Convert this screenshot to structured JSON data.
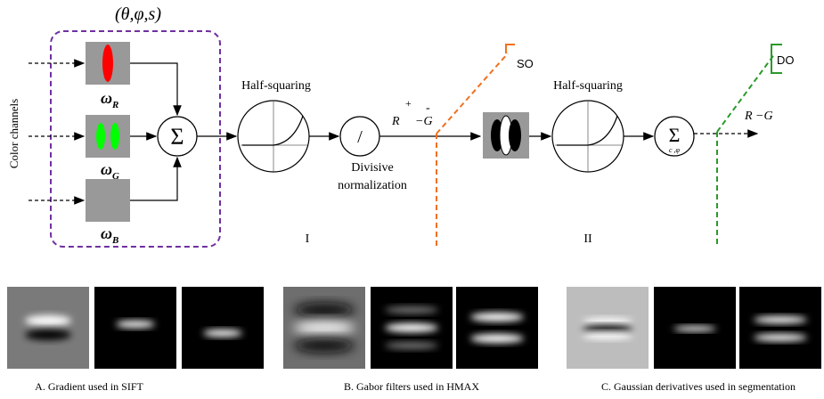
{
  "diagram": {
    "params": "(θ,φ,s)",
    "input_label": "Color channels",
    "weights": [
      {
        "symbol": "ω",
        "sub": "R"
      },
      {
        "symbol": "ω",
        "sub": "G"
      },
      {
        "symbol": "ω",
        "sub": "B"
      }
    ],
    "sum": "Σ",
    "stage1": {
      "nonlinearity": "Half-squaring",
      "normalization_symbol": "/",
      "normalization": [
        "Divisive",
        "normalization"
      ],
      "output": {
        "r": "R",
        "plus": "+",
        "g": "−G",
        "minus": "-"
      },
      "tap": "SO",
      "label": "I"
    },
    "stage2": {
      "nonlinearity": "Half-squaring",
      "sum": "Σ",
      "sum_sub": "c ,φ",
      "output": "R −G",
      "tap": "DO",
      "label": "II"
    }
  },
  "examples": [
    {
      "caption": "A. Gradient used in SIFT"
    },
    {
      "caption": "B. Gabor filters used in HMAX"
    },
    {
      "caption": "C. Gaussian derivatives used in segmentation"
    }
  ]
}
